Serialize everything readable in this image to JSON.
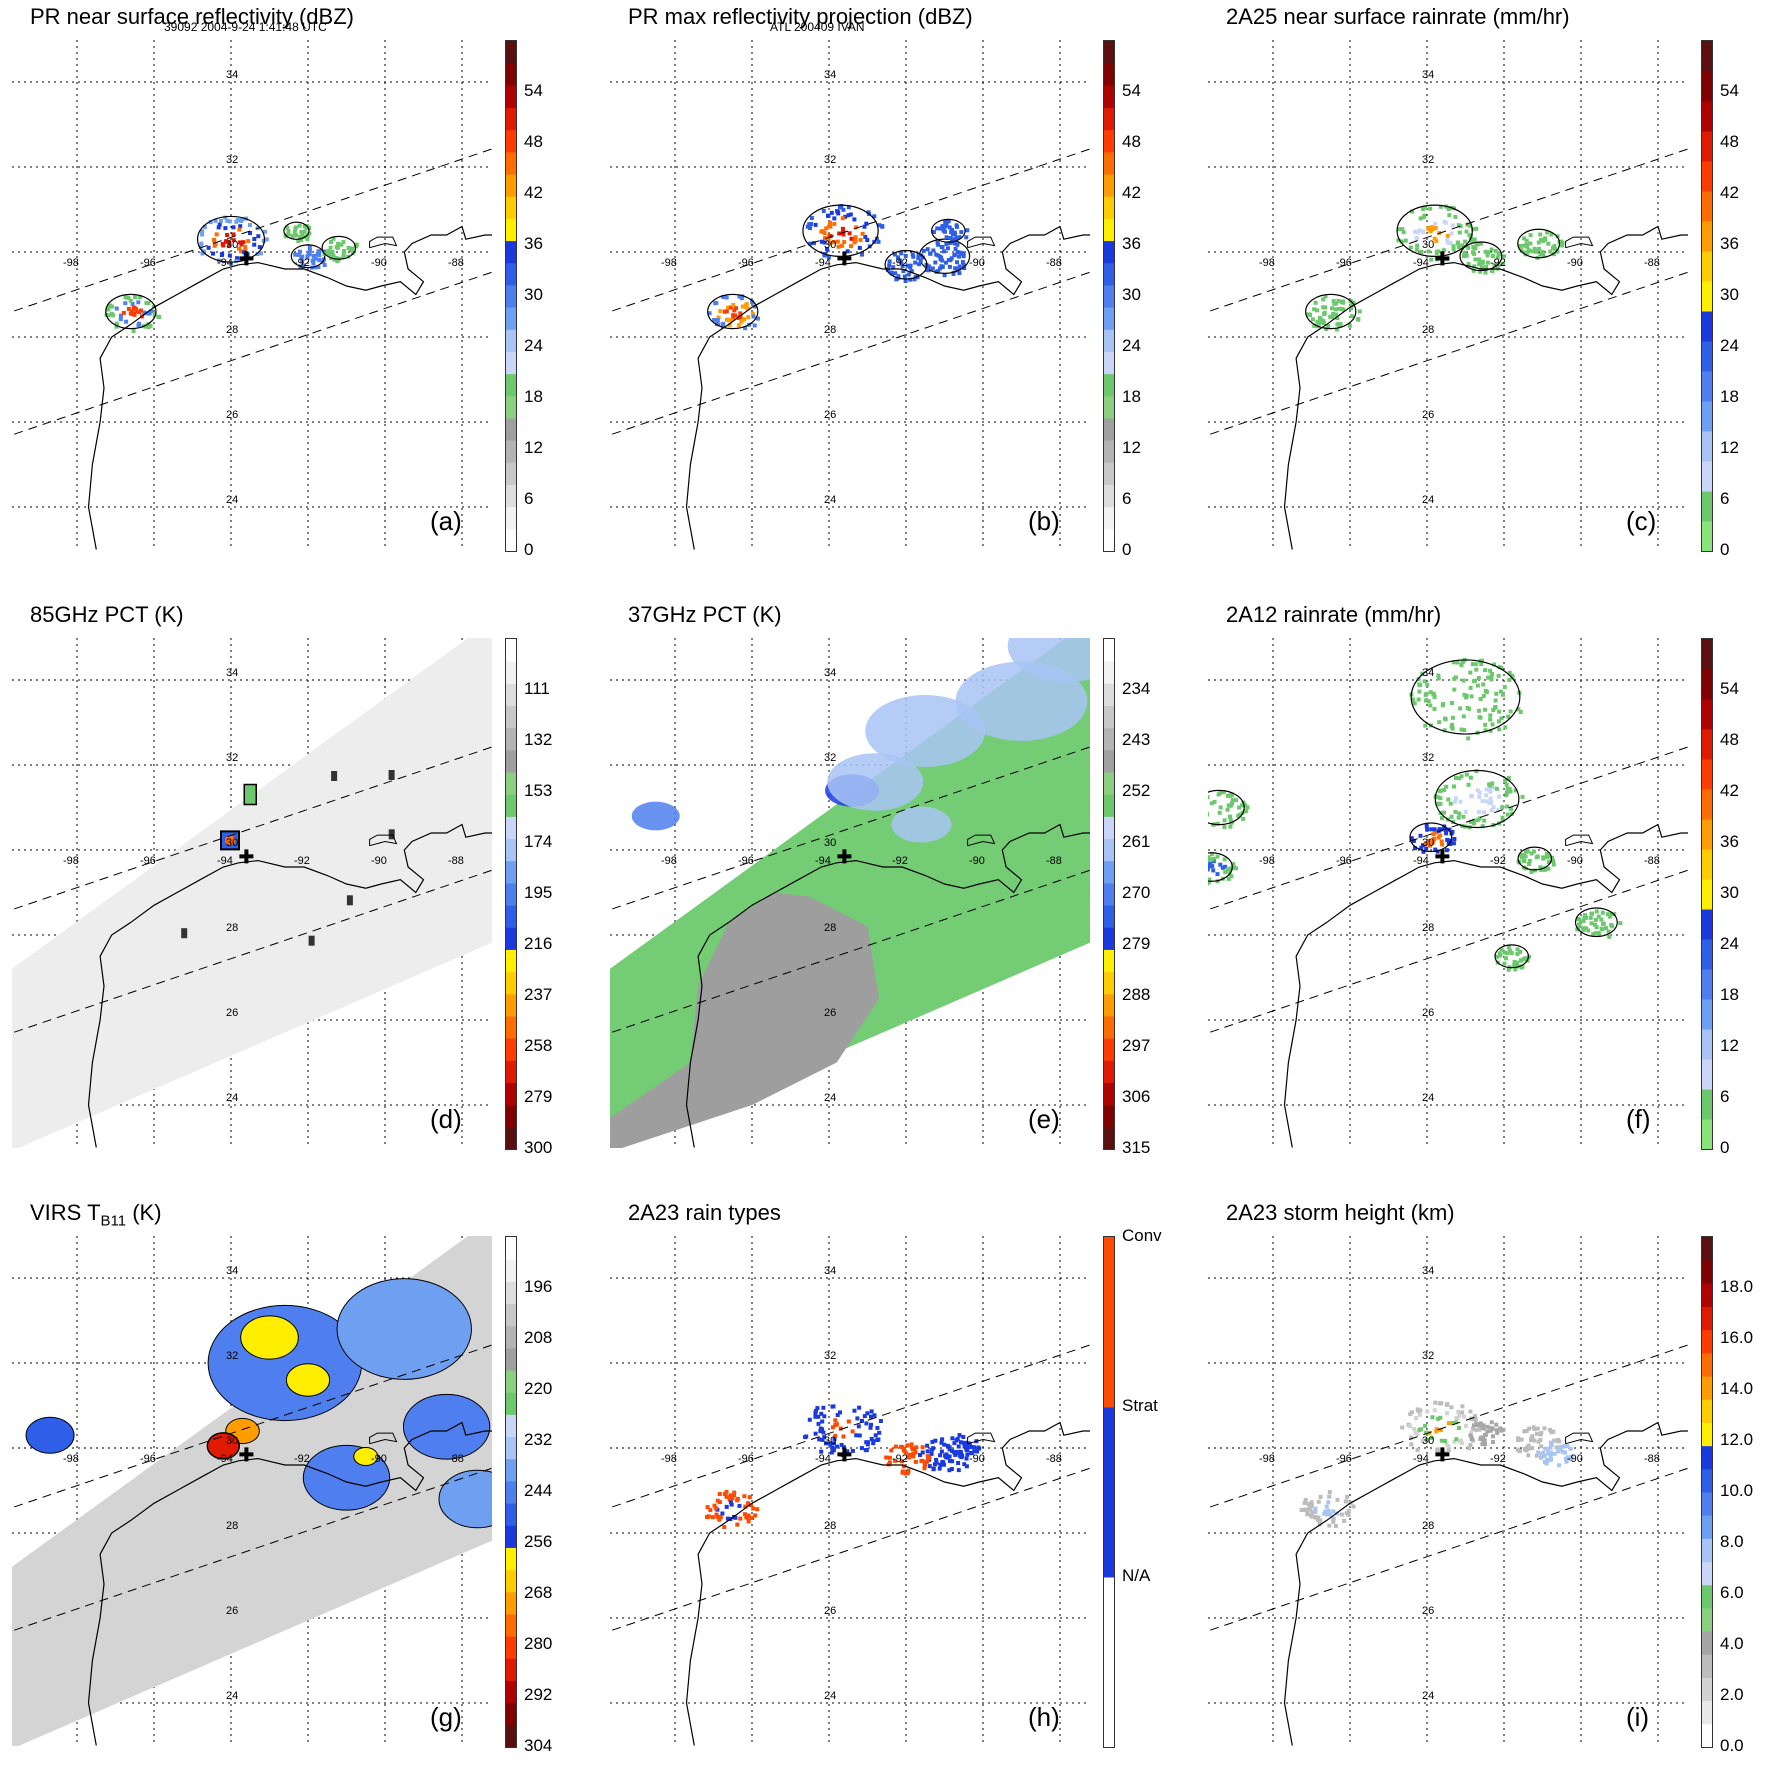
{
  "header": {
    "left": "39092 2004-9-24 1:41:48 UTC",
    "center": "ATL 200409 IVAN"
  },
  "lat_labels": [
    "34",
    "32",
    "30",
    "28",
    "26",
    "24"
  ],
  "lon_labels": [
    "-98",
    "-96",
    "-94",
    "-92",
    "-90",
    "-88"
  ],
  "panels": [
    {
      "id": "a",
      "title": "PR near surface reflectivity (dBZ)",
      "label": "(a)",
      "ticks": [
        "54",
        "48",
        "42",
        "36",
        "30",
        "24",
        "18",
        "12",
        "6",
        "0"
      ],
      "scale": "dbz",
      "field": "pr_sfc"
    },
    {
      "id": "b",
      "title": "PR max reflectivity projection (dBZ)",
      "label": "(b)",
      "ticks": [
        "54",
        "48",
        "42",
        "36",
        "30",
        "24",
        "18",
        "12",
        "6",
        "0"
      ],
      "scale": "dbz",
      "field": "pr_max"
    },
    {
      "id": "c",
      "title": "2A25 near surface rainrate (mm/hr)",
      "label": "(c)",
      "ticks": [
        "54",
        "48",
        "42",
        "36",
        "30",
        "24",
        "18",
        "12",
        "6",
        "0"
      ],
      "scale": "rain",
      "field": "rain25"
    },
    {
      "id": "d",
      "title": "85GHz PCT (K)",
      "label": "(d)",
      "ticks": [
        "111",
        "132",
        "153",
        "174",
        "195",
        "216",
        "237",
        "258",
        "279",
        "300"
      ],
      "scale": "pct",
      "field": "pct85"
    },
    {
      "id": "e",
      "title": "37GHz PCT (K)",
      "label": "(e)",
      "ticks": [
        "234",
        "243",
        "252",
        "261",
        "270",
        "279",
        "288",
        "297",
        "306",
        "315"
      ],
      "scale": "pct",
      "field": "pct37"
    },
    {
      "id": "f",
      "title": "2A12 rainrate (mm/hr)",
      "label": "(f)",
      "ticks": [
        "54",
        "48",
        "42",
        "36",
        "30",
        "24",
        "18",
        "12",
        "6",
        "0"
      ],
      "scale": "rain",
      "field": "rain12"
    },
    {
      "id": "g",
      "title_main": "VIRS T",
      "title_sub": "B11",
      "title_tail": " (K)",
      "label": "(g)",
      "ticks": [
        "196",
        "208",
        "220",
        "232",
        "244",
        "256",
        "268",
        "280",
        "292",
        "304"
      ],
      "scale": "pct",
      "field": "virs"
    },
    {
      "id": "h",
      "title": "2A23 rain types",
      "label": "(h)",
      "ticks": [
        "Conv",
        "Strat",
        "N/A"
      ],
      "scale": "types",
      "field": "types"
    },
    {
      "id": "i",
      "title": "2A23 storm height (km)",
      "label": "(i)",
      "ticks": [
        "18.0",
        "16.0",
        "14.0",
        "12.0",
        "10.0",
        "8.0",
        "6.0",
        "4.0",
        "2.0",
        "0.0"
      ],
      "scale": "height",
      "field": "height"
    }
  ],
  "colors": {
    "dbz": [
      "#ffffff",
      "#f2f2f2",
      "#dddddd",
      "#c8c8c8",
      "#b4b4b4",
      "#a0a0a0",
      "#8ccf80",
      "#6dc86d",
      "#c9d6f7",
      "#a8c4f5",
      "#6f9ff0",
      "#4f7fee",
      "#2f5fe8",
      "#1a3ae0",
      "#ffee00",
      "#ffcc00",
      "#ff9c00",
      "#ff6c00",
      "#ff3b00",
      "#e01a00",
      "#b00000",
      "#800000",
      "#5a1010"
    ],
    "rain": [
      "#8ae27a",
      "#6dc86d",
      "#c9d6f7",
      "#a8c4f5",
      "#6f9ff0",
      "#4f7fee",
      "#2f5fe8",
      "#1a3ae0",
      "#ffee00",
      "#ffcc00",
      "#ff9c00",
      "#ff6c00",
      "#ff3b00",
      "#e01a00",
      "#b00000",
      "#800000",
      "#5a1010"
    ],
    "pct": [
      "#5a1010",
      "#800000",
      "#b00000",
      "#e01a00",
      "#ff3b00",
      "#ff6c00",
      "#ff9c00",
      "#ffcc00",
      "#ffee00",
      "#1a3ae0",
      "#2f5fe8",
      "#4f7fee",
      "#6f9ff0",
      "#a8c4f5",
      "#c9d6f7",
      "#6dc86d",
      "#8ccf80",
      "#a0a0a0",
      "#b4b4b4",
      "#c8c8c8",
      "#dddddd",
      "#f2f2f2",
      "#ffffff"
    ],
    "height": [
      "#ffffff",
      "#e8e8e8",
      "#d2d2d2",
      "#bcbcbc",
      "#a6a6a6",
      "#8ccf80",
      "#6dc86d",
      "#c9d6f7",
      "#a8c4f5",
      "#6f9ff0",
      "#4f7fee",
      "#2f5fe8",
      "#1a3ae0",
      "#ffee00",
      "#ffcc00",
      "#ff9c00",
      "#ff6c00",
      "#ff3b00",
      "#e01a00",
      "#b00000",
      "#800000",
      "#5a1010"
    ],
    "types": [
      "#ffffff",
      "#1a3ae0",
      "#ff4a00"
    ]
  }
}
